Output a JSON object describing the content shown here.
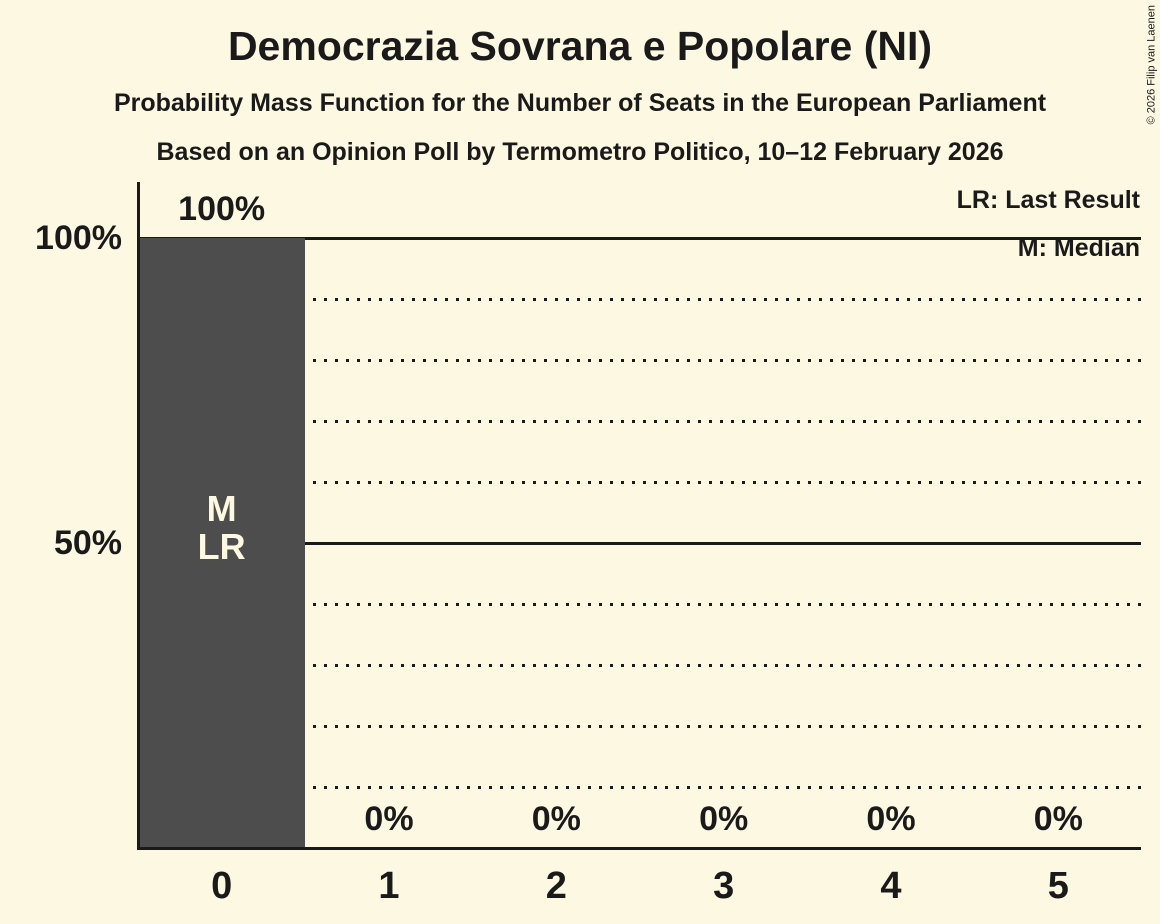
{
  "header": {
    "title": "Democrazia Sovrana e Popolare (NI)",
    "subtitle": "Probability Mass Function for the Number of Seats in the European Parliament",
    "source_line": "Based on an Opinion Poll by Termometro Politico, 10–12 February 2026"
  },
  "copyright": "© 2026 Filip van Laenen",
  "legend": {
    "last_result": "LR: Last Result",
    "median": "M: Median"
  },
  "chart_data": {
    "type": "bar",
    "title": "Democrazia Sovrana e Popolare (NI)",
    "categories": [
      "0",
      "1",
      "2",
      "3",
      "4",
      "5"
    ],
    "values": [
      100,
      0,
      0,
      0,
      0,
      0
    ],
    "bar_value_labels": [
      "100%",
      "0%",
      "0%",
      "0%",
      "0%",
      "0%"
    ],
    "xlabel": "",
    "ylabel": "",
    "ylim": [
      0,
      100
    ],
    "y_ticks": [
      {
        "value": 100,
        "label": "100%"
      },
      {
        "value": 50,
        "label": "50%"
      }
    ],
    "solid_gridlines": [
      100,
      50
    ],
    "dotted_gridlines": [
      90,
      80,
      70,
      60,
      40,
      30,
      20,
      10
    ],
    "grid": "on",
    "legend_position": "top-right",
    "annotations": {
      "median_category": "0",
      "last_result_category": "0",
      "inner_labels": [
        "M",
        "LR"
      ]
    }
  },
  "colors": {
    "background": "#fdf8e1",
    "bar": "#4d4d4d",
    "text": "#1a1a1a",
    "bar_inner_text": "#fdf8e1"
  }
}
